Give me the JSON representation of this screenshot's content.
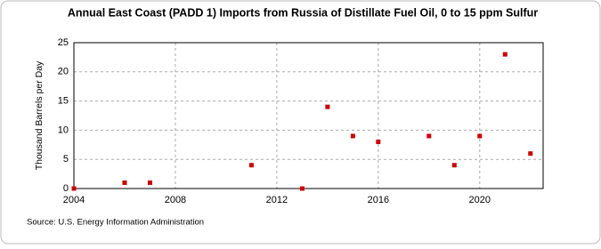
{
  "chart_data": {
    "type": "scatter",
    "title": "Annual East Coast (PADD 1) Imports from Russia of Distillate Fuel Oil, 0 to 15 ppm Sulfur",
    "y_label": "Thousand Barrels per Day",
    "source": "Source: U.S. Energy Information Administration",
    "x": [
      2004,
      2006,
      2007,
      2011,
      2013,
      2014,
      2015,
      2016,
      2018,
      2019,
      2020,
      2021,
      2022
    ],
    "values": [
      0,
      1,
      1,
      4,
      0,
      14,
      9,
      8,
      9,
      4,
      9,
      23,
      6
    ],
    "color": "#cc0000",
    "xlim": [
      2004,
      2022.5
    ],
    "xticks": [
      2004,
      2008,
      2012,
      2016,
      2020
    ],
    "ylim": [
      0,
      25
    ],
    "yticks": [
      0,
      5,
      10,
      15,
      20,
      25
    ],
    "grid": true
  }
}
